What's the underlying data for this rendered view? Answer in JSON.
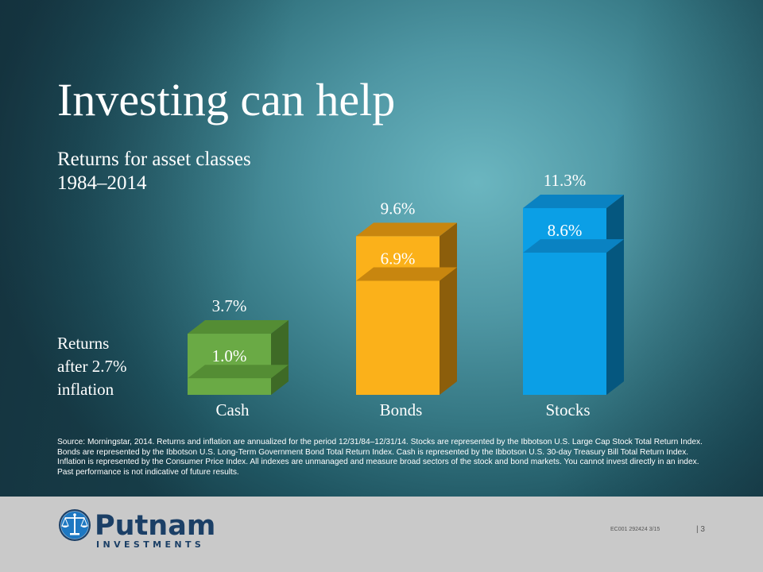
{
  "slide": {
    "title": "Investing can help",
    "subtitle_line1": "Returns for asset classes",
    "subtitle_line2": "1984–2014",
    "side_note_line1": "Returns",
    "side_note_line2": "after 2.7%",
    "side_note_line3": "inflation"
  },
  "chart_data": {
    "type": "bar",
    "title": "",
    "categories": [
      "Cash",
      "Bonds",
      "Stocks"
    ],
    "series": [
      {
        "name": "",
        "values": [
          3.7,
          9.6,
          11.3
        ],
        "labels": [
          "3.7%",
          "9.6%",
          "11.3%"
        ]
      },
      {
        "name": "",
        "values": [
          1.0,
          6.9,
          8.6
        ],
        "labels": [
          "1.0%",
          "6.9%",
          "8.6%"
        ]
      }
    ],
    "inflation": 2.7,
    "ylim": [
      0,
      11.3
    ],
    "grid": false,
    "legend": "none",
    "colors": {
      "Cash": {
        "front": "#6aaa45",
        "top": "#548d34",
        "side": "#3e6a26"
      },
      "Bonds": {
        "front": "#fbb11a",
        "top": "#c8860f",
        "side": "#8c5e0b"
      },
      "Stocks": {
        "front": "#0b9fe6",
        "top": "#0a82c2",
        "side": "#05577f"
      }
    }
  },
  "source_text": "Source: Morningstar, 2014. Returns and inflation are annualized for the period 12/31/84–12/31/14. Stocks are represented by the Ibbotson U.S. Large Cap Stock Total Return Index. Bonds are represented by the Ibbotson U.S. Long-Term Government Bond Total Return Index. Cash is represented by the Ibbotson U.S. 30-day Treasury Bill Total Return Index. Inflation is represented by the Consumer Price Index. All indexes are unmanaged and measure broad sectors of the stock and bond markets. You cannot invest directly in an index. Past performance is not indicative of future results.",
  "footer": {
    "logo_name": "Putnam",
    "logo_sub": "INVESTMENTS",
    "logo_icon": "scales-of-justice-icon",
    "code": "EC001  292424  3/15",
    "page": "| 3"
  }
}
